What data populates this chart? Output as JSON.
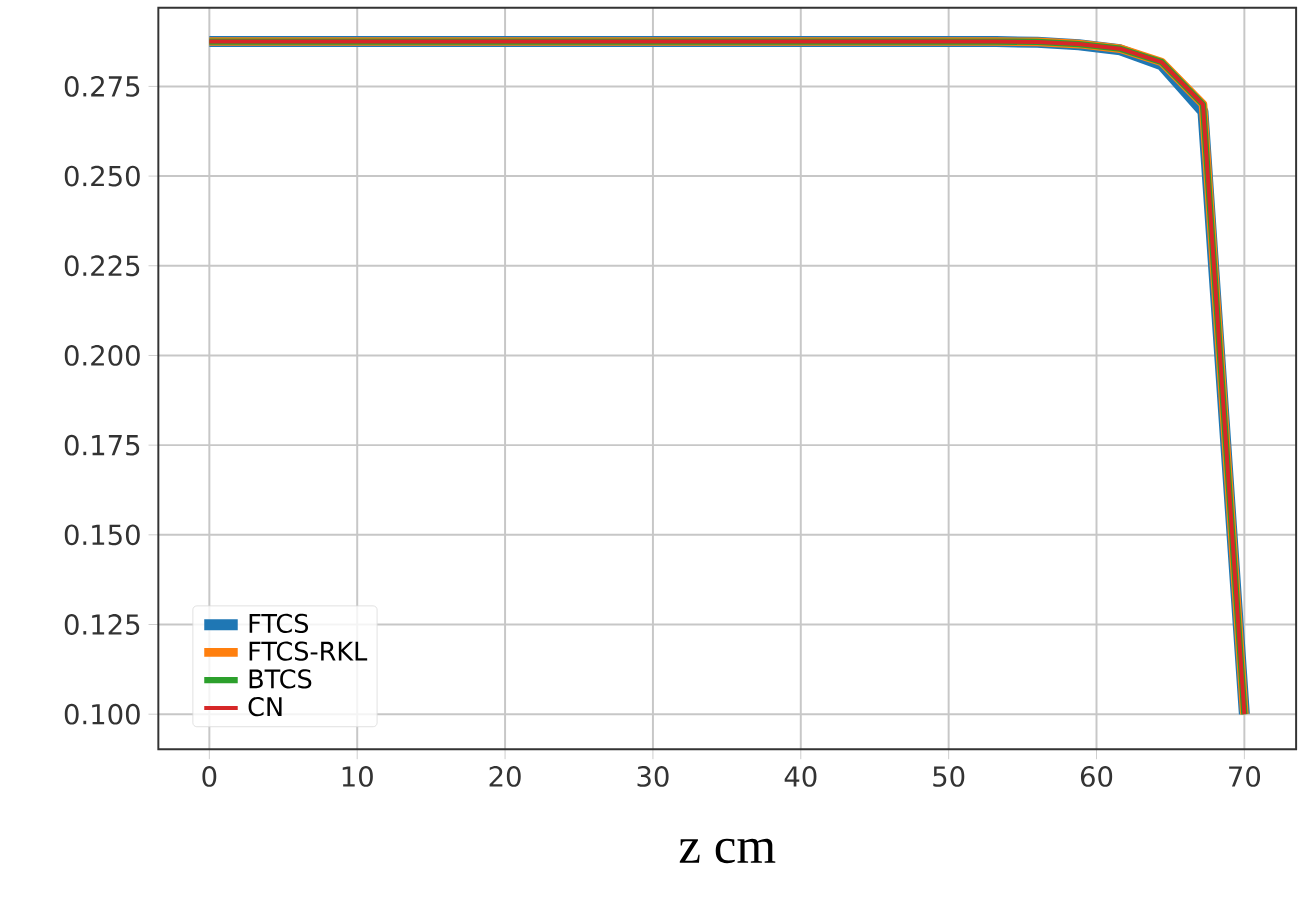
{
  "chart_data": {
    "type": "line",
    "xlabel": "z cm",
    "x": [
      0,
      53.2,
      56,
      58.8,
      61.6,
      64.4,
      67.2,
      70
    ],
    "series": [
      {
        "name": "FTCS",
        "color": "#1f77b4",
        "values": [
          0.2875,
          0.2875,
          0.2873,
          0.2866,
          0.2852,
          0.281,
          0.268,
          0.1
        ]
      },
      {
        "name": "FTCS-RKL",
        "color": "#ff7f0e",
        "values": [
          0.2875,
          0.2875,
          0.2874,
          0.2868,
          0.2855,
          0.2818,
          0.27,
          0.1
        ]
      },
      {
        "name": "BTCS",
        "color": "#2ca02c",
        "values": [
          0.2875,
          0.2875,
          0.2874,
          0.2868,
          0.2855,
          0.2818,
          0.27,
          0.1
        ]
      },
      {
        "name": "CN",
        "color": "#d62728",
        "values": [
          0.2875,
          0.2875,
          0.2874,
          0.2868,
          0.2855,
          0.2818,
          0.27,
          0.1
        ]
      }
    ],
    "xlim": [
      -3.45,
      73.5
    ],
    "ylim": [
      0.0902,
      0.2969
    ],
    "xticks": [
      0,
      10,
      20,
      30,
      40,
      50,
      60,
      70
    ],
    "yticks": [
      {
        "value": 0.1,
        "label": "0.100"
      },
      {
        "value": 0.125,
        "label": "0.125"
      },
      {
        "value": 0.15,
        "label": "0.150"
      },
      {
        "value": 0.175,
        "label": "0.175"
      },
      {
        "value": 0.2,
        "label": "0.200"
      },
      {
        "value": 0.225,
        "label": "0.225"
      },
      {
        "value": 0.25,
        "label": "0.250"
      },
      {
        "value": 0.275,
        "label": "0.275"
      }
    ],
    "grid": true,
    "legend": "bottom left",
    "marker": "none",
    "line_style": "solid"
  }
}
